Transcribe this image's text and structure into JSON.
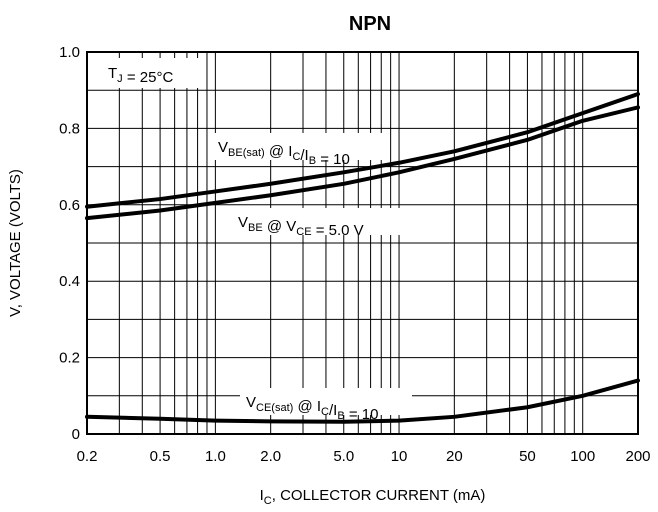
{
  "chart_data": {
    "type": "line",
    "title": "NPN",
    "xlabel": {
      "main": "I",
      "sub": "C",
      "rest": ", COLLECTOR CURRENT (mA)"
    },
    "ylabel": "V, VOLTAGE (VOLTS)",
    "x_scale": "log",
    "xlim": [
      0.2,
      200
    ],
    "ylim": [
      0,
      1.0
    ],
    "x_ticks": [
      {
        "value": 0.2,
        "label": "0.2"
      },
      {
        "value": 0.5,
        "label": "0.5"
      },
      {
        "value": 1.0,
        "label": "1.0"
      },
      {
        "value": 2.0,
        "label": "2.0"
      },
      {
        "value": 5.0,
        "label": "5.0"
      },
      {
        "value": 10,
        "label": "10"
      },
      {
        "value": 20,
        "label": "20"
      },
      {
        "value": 50,
        "label": "50"
      },
      {
        "value": 100,
        "label": "100"
      },
      {
        "value": 200,
        "label": "200"
      }
    ],
    "y_ticks": [
      {
        "value": 0,
        "label": "0"
      },
      {
        "value": 0.2,
        "label": "0.2"
      },
      {
        "value": 0.4,
        "label": "0.4"
      },
      {
        "value": 0.6,
        "label": "0.6"
      },
      {
        "value": 0.8,
        "label": "0.8"
      },
      {
        "value": 1.0,
        "label": "1.0"
      }
    ],
    "grid": true,
    "condition": {
      "main": "T",
      "sub": "J",
      "rest": " = 25°C"
    },
    "series": [
      {
        "name": "VBE(sat) @ IC/IB = 10",
        "label_parts": [
          {
            "t": "V"
          },
          {
            "t": "BE(sat)",
            "sub": true
          },
          {
            "t": " @ I"
          },
          {
            "t": "C",
            "sub": true
          },
          {
            "t": "/I"
          },
          {
            "t": "B",
            "sub": true
          },
          {
            "t": " = 10"
          }
        ],
        "x": [
          0.2,
          0.5,
          1,
          2,
          5,
          10,
          20,
          50,
          100,
          200
        ],
        "y": [
          0.595,
          0.615,
          0.635,
          0.655,
          0.685,
          0.71,
          0.74,
          0.79,
          0.84,
          0.89
        ]
      },
      {
        "name": "VBE @ VCE = 5.0 V",
        "label_parts": [
          {
            "t": "V"
          },
          {
            "t": "BE",
            "sub": true
          },
          {
            "t": " @ V"
          },
          {
            "t": "CE",
            "sub": true
          },
          {
            "t": " = 5.0 V"
          }
        ],
        "x": [
          0.2,
          0.5,
          1,
          2,
          5,
          10,
          20,
          50,
          100,
          200
        ],
        "y": [
          0.565,
          0.585,
          0.605,
          0.625,
          0.655,
          0.685,
          0.72,
          0.77,
          0.82,
          0.855
        ]
      },
      {
        "name": "VCE(sat) @ IC/IB = 10",
        "label_parts": [
          {
            "t": "V"
          },
          {
            "t": "CE(sat)",
            "sub": true
          },
          {
            "t": " @ I"
          },
          {
            "t": "C",
            "sub": true
          },
          {
            "t": "/I"
          },
          {
            "t": "B",
            "sub": true
          },
          {
            "t": " = 10"
          }
        ],
        "x": [
          0.2,
          0.5,
          1,
          2,
          5,
          10,
          20,
          50,
          100,
          200
        ],
        "y": [
          0.045,
          0.04,
          0.035,
          0.033,
          0.032,
          0.035,
          0.045,
          0.07,
          0.1,
          0.14
        ]
      }
    ]
  }
}
